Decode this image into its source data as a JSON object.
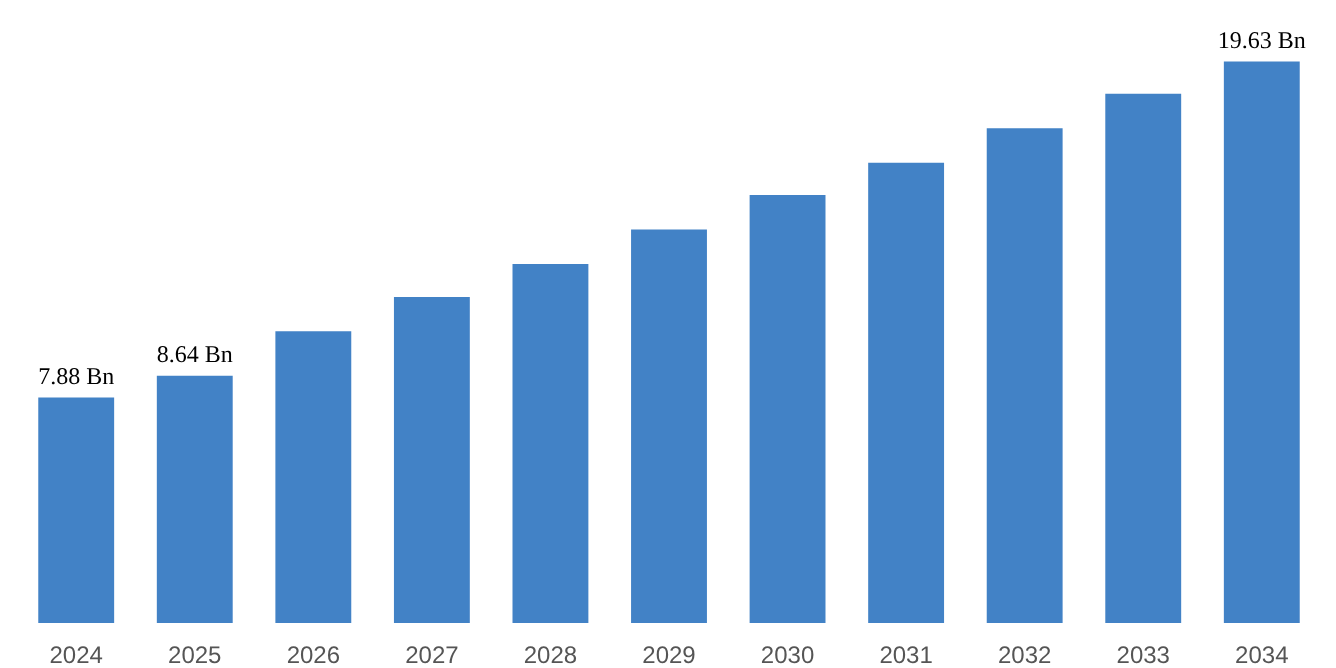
{
  "chart_data": {
    "type": "bar",
    "categories": [
      "2024",
      "2025",
      "2026",
      "2027",
      "2028",
      "2029",
      "2030",
      "2031",
      "2032",
      "2033",
      "2034"
    ],
    "values": [
      7.88,
      8.64,
      10.2,
      11.4,
      12.55,
      13.76,
      14.96,
      16.09,
      17.3,
      18.5,
      19.63
    ],
    "value_labels": [
      "7.88 Bn",
      "8.64 Bn",
      null,
      null,
      null,
      null,
      null,
      null,
      null,
      null,
      "19.63 Bn"
    ],
    "color": "#4282c6"
  }
}
